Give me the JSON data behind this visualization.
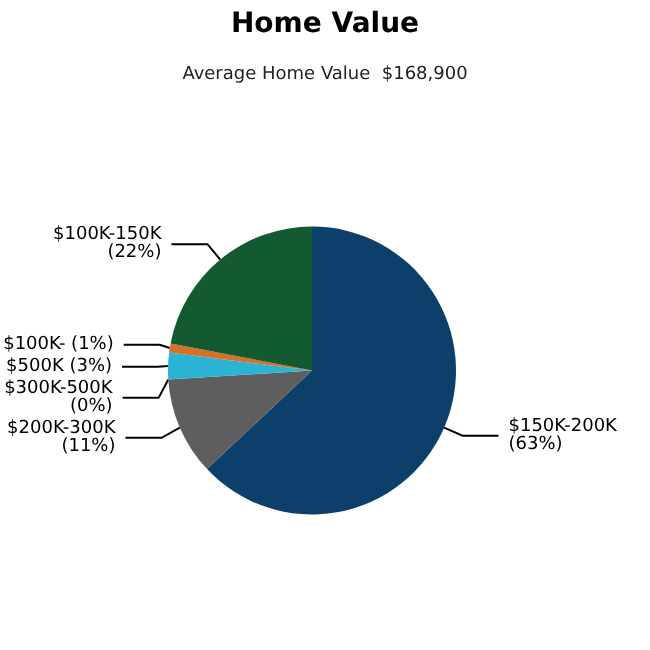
{
  "chart_data": {
    "type": "pie",
    "title": "Home Value",
    "subtitle": "Average Home Value  $168,900",
    "categories": [
      "$150K-200K",
      "$200K-300K",
      "$300K-500K",
      "$500K",
      "$100K-",
      "$100K-150K"
    ],
    "values": [
      63,
      11,
      0,
      3,
      1,
      22
    ],
    "value_labels": [
      "(63%)",
      "(11%)",
      "(0%)",
      "(3%)",
      "(1%)",
      "(22%)"
    ],
    "colors": [
      "#0d3f6b",
      "#5e5e5e",
      "#9a9a9a",
      "#2bb3d3",
      "#d4722a",
      "#145a30"
    ]
  }
}
